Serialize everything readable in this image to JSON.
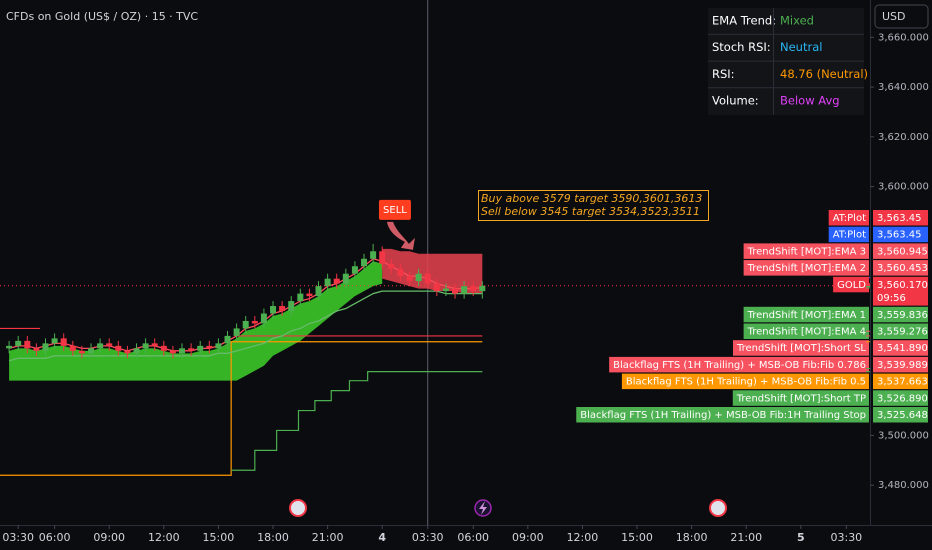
{
  "header": {
    "symbol": "CFDs on Gold (US$ / OZ) · 15 · TVC",
    "currency": "USD"
  },
  "table": {
    "rows": [
      {
        "label": "EMA Trend:",
        "value": "Mixed",
        "color": "#4caf50"
      },
      {
        "label": "Stoch RSI:",
        "value": "Neutral",
        "color": "#29b6f6"
      },
      {
        "label": "RSI:",
        "value": "48.76 (Neutral)",
        "color": "#ff9800"
      },
      {
        "label": "Volume:",
        "value": "Below Avg",
        "color": "#e040fb"
      }
    ]
  },
  "chart_data": {
    "type": "candlestick",
    "up_color": "#4caf50",
    "down_color": "#f23645",
    "xlim": [
      3,
      50.8
    ],
    "ylim": [
      3464,
      3675
    ],
    "xticks": [
      {
        "value": 4,
        "label": "03:30"
      },
      {
        "value": 6,
        "label": "06:00"
      },
      {
        "value": 9,
        "label": "09:00"
      },
      {
        "value": 12,
        "label": "12:00"
      },
      {
        "value": 15,
        "label": "15:00"
      },
      {
        "value": 18,
        "label": "18:00"
      },
      {
        "value": 21,
        "label": "21:00"
      },
      {
        "value": 24,
        "label": "4"
      },
      {
        "value": 26.5,
        "label": "03:30"
      },
      {
        "value": 29,
        "label": "06:00"
      },
      {
        "value": 32,
        "label": "09:00"
      },
      {
        "value": 35,
        "label": "12:00"
      },
      {
        "value": 38,
        "label": "15:00"
      },
      {
        "value": 41,
        "label": "18:00"
      },
      {
        "value": 44,
        "label": "21:00"
      },
      {
        "value": 47,
        "label": "5"
      },
      {
        "value": 49.5,
        "label": "03:30"
      }
    ],
    "yticks": [
      {
        "value": 3480,
        "label": "3,480.000"
      },
      {
        "value": 3500,
        "label": "3,500.000"
      },
      {
        "value": 3600,
        "label": "3,600.000"
      },
      {
        "value": 3620,
        "label": "3,620.000"
      },
      {
        "value": 3640,
        "label": "3,640.000"
      },
      {
        "value": 3660,
        "label": "3,660.000"
      }
    ],
    "x": [
      3.5,
      4,
      4.5,
      5,
      5.5,
      6,
      6.5,
      7,
      7.5,
      8,
      8.5,
      9,
      9.5,
      10,
      10.5,
      11,
      11.5,
      12,
      12.5,
      13,
      13.5,
      14,
      14.5,
      15,
      15.5,
      16,
      16.5,
      17,
      17.5,
      18,
      18.5,
      19,
      19.5,
      20,
      20.5,
      21,
      21.5,
      22,
      22.5,
      23,
      23.5,
      24,
      24.5,
      25,
      25.5,
      26,
      26.5,
      27,
      27.5,
      28,
      28.5,
      29,
      29.5
    ],
    "open": [
      3535,
      3536,
      3538,
      3535,
      3534,
      3537,
      3539,
      3536,
      3534,
      3533,
      3535,
      3537,
      3536,
      3534,
      3533,
      3535,
      3537,
      3536,
      3534,
      3533,
      3535,
      3534,
      3536,
      3535,
      3537,
      3540,
      3543,
      3546,
      3545,
      3549,
      3552,
      3550,
      3554,
      3557,
      3556,
      3560,
      3563,
      3561,
      3565,
      3568,
      3571,
      3574,
      3569,
      3567,
      3564,
      3562,
      3565,
      3561,
      3558,
      3559,
      3557,
      3560,
      3558
    ],
    "high": [
      3538,
      3540,
      3540,
      3537,
      3539,
      3541,
      3541,
      3538,
      3536,
      3537,
      3539,
      3539,
      3538,
      3536,
      3537,
      3539,
      3539,
      3538,
      3536,
      3537,
      3537,
      3538,
      3538,
      3539,
      3542,
      3545,
      3548,
      3548,
      3551,
      3554,
      3554,
      3556,
      3559,
      3559,
      3562,
      3565,
      3565,
      3567,
      3570,
      3573,
      3577,
      3576,
      3571,
      3569,
      3566,
      3567,
      3567,
      3563,
      3561,
      3561,
      3562,
      3562,
      3562
    ],
    "low": [
      3533,
      3534,
      3533,
      3532,
      3532,
      3535,
      3534,
      3532,
      3531,
      3531,
      3533,
      3534,
      3532,
      3531,
      3531,
      3533,
      3534,
      3532,
      3531,
      3531,
      3532,
      3532,
      3533,
      3533,
      3535,
      3538,
      3541,
      3543,
      3543,
      3547,
      3548,
      3548,
      3552,
      3554,
      3554,
      3558,
      3559,
      3559,
      3563,
      3566,
      3569,
      3567,
      3565,
      3562,
      3560,
      3560,
      3559,
      3556,
      3556,
      3555,
      3555,
      3556,
      3555
    ],
    "close": [
      3536,
      3538,
      3535,
      3534,
      3537,
      3539,
      3536,
      3534,
      3533,
      3535,
      3537,
      3536,
      3534,
      3533,
      3535,
      3537,
      3536,
      3534,
      3533,
      3535,
      3534,
      3536,
      3535,
      3537,
      3540,
      3543,
      3546,
      3545,
      3549,
      3552,
      3550,
      3554,
      3557,
      3556,
      3560,
      3563,
      3561,
      3565,
      3568,
      3571,
      3574,
      3569,
      3567,
      3564,
      3562,
      3565,
      3561,
      3558,
      3559,
      3557,
      3560,
      3558,
      3560.17
    ],
    "bands": [
      {
        "color": "#3fd12a",
        "upper": [
          3534,
          3535,
          3535,
          3534,
          3535,
          3536,
          3536,
          3535,
          3534,
          3534,
          3535,
          3535,
          3534,
          3533,
          3534,
          3535,
          3535,
          3534,
          3533,
          3533,
          3533,
          3534,
          3534,
          3535,
          3537,
          3539,
          3542,
          3543,
          3545,
          3548,
          3549,
          3551,
          3553,
          3554,
          3556,
          3559,
          3560,
          3562,
          3564,
          3567,
          3570,
          3569,
          null,
          null,
          null,
          null,
          null,
          null,
          null,
          null,
          null,
          null,
          null
        ],
        "lower": [
          3522,
          3522,
          3522,
          3522,
          3522,
          3522,
          3522,
          3522,
          3522,
          3522,
          3522,
          3522,
          3522,
          3522,
          3522,
          3522,
          3522,
          3522,
          3522,
          3522,
          3522,
          3522,
          3522,
          3522,
          3522,
          3522,
          3524,
          3526,
          3528,
          3532,
          3534,
          3536,
          3538,
          3541,
          3544,
          3547,
          3550,
          3553,
          3556,
          3558,
          3560,
          3561,
          null,
          null,
          null,
          null,
          null,
          null,
          null,
          null,
          null,
          null,
          null
        ]
      },
      {
        "color": "#e8434f",
        "upper": [
          null,
          null,
          null,
          null,
          null,
          null,
          null,
          null,
          null,
          null,
          null,
          null,
          null,
          null,
          null,
          null,
          null,
          null,
          null,
          null,
          null,
          null,
          null,
          null,
          null,
          null,
          null,
          null,
          null,
          null,
          null,
          null,
          null,
          null,
          null,
          null,
          null,
          null,
          null,
          null,
          null,
          3575,
          3575,
          3574,
          3574,
          3573,
          3573,
          3573,
          3573,
          3573,
          3573,
          3573,
          3573
        ],
        "lower": [
          null,
          null,
          null,
          null,
          null,
          null,
          null,
          null,
          null,
          null,
          null,
          null,
          null,
          null,
          null,
          null,
          null,
          null,
          null,
          null,
          null,
          null,
          null,
          null,
          null,
          null,
          null,
          null,
          null,
          null,
          null,
          null,
          null,
          null,
          null,
          null,
          null,
          null,
          null,
          null,
          null,
          3563,
          3562,
          3561,
          3560,
          3559,
          3559,
          3558,
          3558,
          3558,
          3557,
          3557,
          3557
        ]
      }
    ],
    "series": [
      {
        "color": "#ff4d5a",
        "values": [
          3535,
          3536,
          3536,
          3535,
          3536,
          3537,
          3537,
          3536,
          3535,
          3535,
          3536,
          3536,
          3535,
          3534,
          3535,
          3536,
          3536,
          3535,
          3534,
          3534,
          3534,
          3535,
          3535,
          3536,
          3538,
          3540,
          3543,
          3544,
          3546,
          3549,
          3550,
          3552,
          3554,
          3555,
          3557,
          3560,
          3561,
          3563,
          3565,
          3568,
          3571,
          3570,
          3568,
          3566,
          3564,
          3564,
          3563,
          3561,
          3560,
          3559,
          3559,
          3559,
          3559.5
        ]
      },
      {
        "color": "#66bb6a",
        "values": [
          3530,
          3531,
          3531,
          3531,
          3531,
          3532,
          3532,
          3532,
          3532,
          3532,
          3532,
          3532,
          3532,
          3532,
          3532,
          3532,
          3532,
          3532,
          3532,
          3532,
          3532,
          3532,
          3532,
          3533,
          3533,
          3534,
          3535,
          3536,
          3537,
          3539,
          3540,
          3542,
          3543,
          3545,
          3546,
          3548,
          3550,
          3551,
          3553,
          3555,
          3557,
          3558,
          3558,
          3558,
          3558,
          3558,
          3558,
          3558,
          3557,
          3557,
          3557,
          3557,
          3557
        ]
      }
    ],
    "trails": [
      {
        "color": "#ff9800",
        "x": [
          3,
          15.7,
          15.7,
          29.5
        ],
        "values": [
          3484,
          3484,
          3537.663,
          3537.663
        ]
      },
      {
        "color": "#f23645",
        "x": [
          15.9,
          29.5
        ],
        "values": [
          3539.989,
          3539.989
        ]
      },
      {
        "color": "#f23645",
        "x": [
          3,
          5.2
        ],
        "values": [
          3543,
          3543
        ]
      },
      {
        "color": "#4caf50",
        "x": [
          15.7,
          17,
          17,
          18.2,
          18.2,
          19.4,
          19.4,
          20.3,
          20.3,
          21.2,
          21.2,
          22.2,
          22.2,
          23.2,
          23.2,
          29.5
        ],
        "values": [
          3486,
          3486,
          3494,
          3494,
          3502,
          3502,
          3510,
          3510,
          3514,
          3514,
          3518,
          3518,
          3522,
          3522,
          3525.648,
          3525.648
        ]
      }
    ],
    "signal": {
      "label": "SELL",
      "x": 24.7,
      "value": 3577,
      "color": "#ff3d1f"
    },
    "crosshair_x": 26.5,
    "annotation": {
      "lines": [
        "Buy above 3579 target 3590,3601,3613",
        "Sell below 3545 target 3534,3523,3511"
      ],
      "color": "#f5a623"
    },
    "levels": [
      {
        "label": "AT:Plot",
        "value": 3563.45,
        "value_label": "3,563.45",
        "color": "#f23645"
      },
      {
        "label": "AT:Plot",
        "value": 3563.45,
        "value_label": "3,563.45",
        "color": "#2962ff"
      },
      {
        "label": "TrendShift [MOT]:EMA 3",
        "value": 3560.945,
        "value_label": "3,560.945",
        "color": "#f7525f"
      },
      {
        "label": "TrendShift [MOT]:EMA 2",
        "value": 3560.453,
        "value_label": "3,560.453",
        "color": "#f7525f"
      },
      {
        "label": "GOLD",
        "value": 3560.17,
        "value_label": "3,560.170",
        "countdown": "09:56",
        "color": "#f23645"
      },
      {
        "label": "TrendShift [MOT]:EMA 1",
        "value": 3559.836,
        "value_label": "3,559.836",
        "color": "#4caf50"
      },
      {
        "label": "TrendShift [MOT]:EMA 4",
        "value": 3559.276,
        "value_label": "3,559.276",
        "color": "#4caf50"
      },
      {
        "label": "TrendShift [MOT]:Short SL",
        "value": 3541.89,
        "value_label": "3,541.890",
        "color": "#f7525f"
      },
      {
        "label": "Blackflag FTS (1H Trailing) + MSB-OB Fib:Fib 0.786",
        "value": 3539.989,
        "value_label": "3,539.989",
        "color": "#f7525f"
      },
      {
        "label": "Blackflag FTS (1H Trailing) + MSB-OB Fib:Fib 0.5",
        "value": 3537.663,
        "value_label": "3,537.663",
        "color": "#ff9800"
      },
      {
        "label": "TrendShift [MOT]:Short TP",
        "value": 3526.89,
        "value_label": "3,526.890",
        "color": "#4caf50"
      },
      {
        "label": "Blackflag FTS (1H Trailing) + MSB-OB Fib:1H Trailing Stop",
        "value": 3525.648,
        "value_label": "3,525.648",
        "color": "#4caf50"
      }
    ]
  }
}
